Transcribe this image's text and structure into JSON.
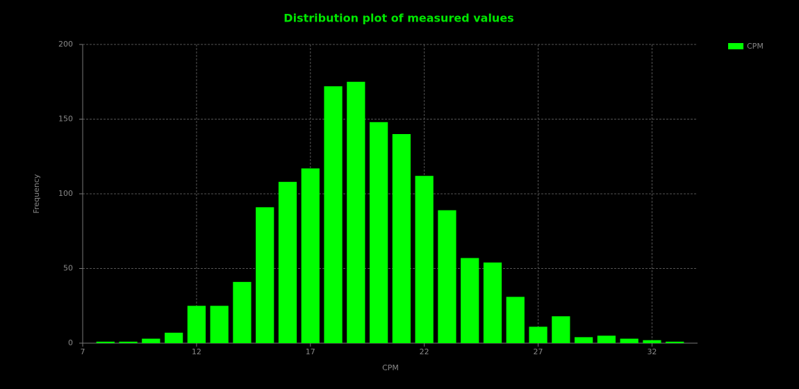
{
  "chart_data": {
    "type": "histogram",
    "title": "Distribution plot of measured values",
    "xlabel": "CPM",
    "ylabel": "Frequency",
    "bins": [
      7.5,
      8.5,
      9.5,
      10.5,
      11.5,
      12.5,
      13.5,
      14.5,
      15.5,
      16.5,
      17.5,
      18.5,
      19.5,
      20.5,
      21.5,
      22.5,
      23.5,
      24.5,
      25.5,
      26.5,
      27.5,
      28.5,
      29.5,
      30.5,
      31.5,
      32.5,
      33.5
    ],
    "series": [
      {
        "name": "CPM",
        "color": "#00ff00",
        "values": [
          1,
          1,
          3,
          7,
          25,
          25,
          41,
          91,
          108,
          117,
          172,
          175,
          148,
          140,
          112,
          89,
          57,
          54,
          31,
          11,
          18,
          4,
          5,
          3,
          2,
          1
        ]
      }
    ],
    "xlim": [
      7,
      34
    ],
    "xticks": [
      7,
      12,
      17,
      22,
      27,
      32
    ],
    "ylim": [
      0,
      200
    ],
    "yticks": [
      0,
      50,
      100,
      150,
      200
    ],
    "grid": true,
    "legend": "upper right"
  }
}
